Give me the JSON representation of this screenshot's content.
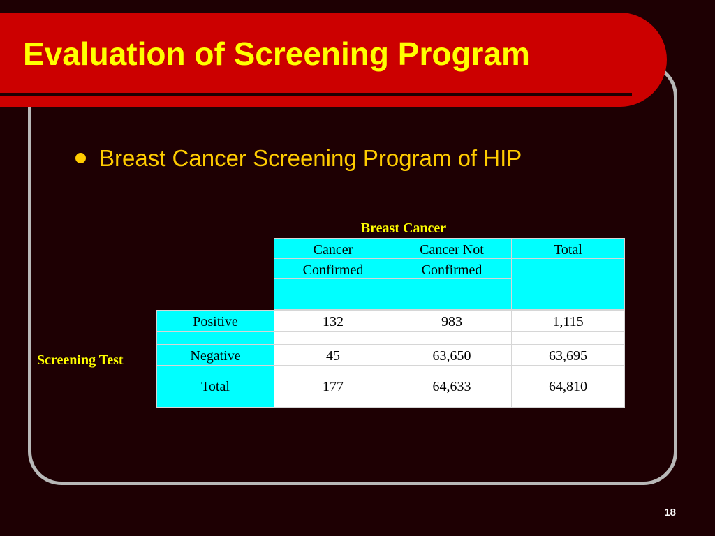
{
  "slide": {
    "title": "Evaluation of Screening Program",
    "bullet": "Breast Cancer Screening Program of HIP",
    "page_number": "18"
  },
  "table": {
    "column_group_label": "Breast Cancer",
    "row_group_label": "Screening Test",
    "columns": [
      {
        "line1": "Cancer",
        "line2": "Confirmed"
      },
      {
        "line1": "Cancer Not",
        "line2": "Confirmed"
      },
      {
        "line1": "Total",
        "line2": ""
      }
    ],
    "rows": [
      {
        "label": "Positive",
        "values": [
          "132",
          "983",
          "1,115"
        ]
      },
      {
        "label": "Negative",
        "values": [
          "45",
          "63,650",
          "63,695"
        ]
      },
      {
        "label": "Total",
        "values": [
          "177",
          "64,633",
          "64,810"
        ]
      }
    ]
  }
}
